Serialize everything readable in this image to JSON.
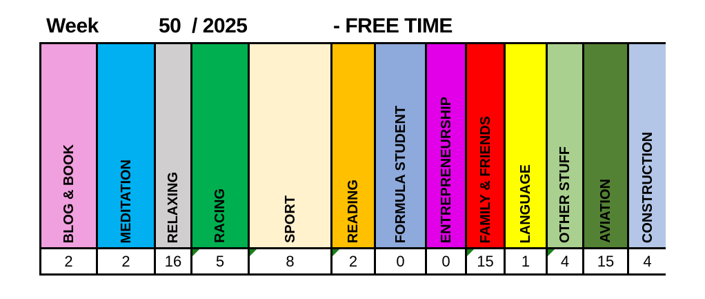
{
  "header": {
    "week_label": "Week",
    "week_year": "50  / 2025",
    "section": "- FREE TIME"
  },
  "categories": [
    {
      "label": "BLOG & BOOK",
      "value": "2",
      "color": "#F0A0DE",
      "comment": false
    },
    {
      "label": "MEDITATION",
      "value": "2",
      "color": "#00B0F0",
      "comment": false
    },
    {
      "label": "RELAXING",
      "value": "16",
      "color": "#D0CECE",
      "comment": false
    },
    {
      "label": "RACING",
      "value": "5",
      "color": "#00B050",
      "comment": true
    },
    {
      "label": "SPORT",
      "value": "8",
      "color": "#FFF2CC",
      "comment": true
    },
    {
      "label": "READING",
      "value": "2",
      "color": "#FFC000",
      "comment": true
    },
    {
      "label": "FORMULA STUDENT",
      "value": "0",
      "color": "#8EA9DB",
      "comment": false
    },
    {
      "label": "ENTREPRENEURSHIP",
      "value": "0",
      "color": "#E100E8",
      "comment": false
    },
    {
      "label": "FAMILY & FRIENDS",
      "value": "15",
      "color": "#FF0000",
      "comment": true
    },
    {
      "label": "LANGUAGE",
      "value": "1",
      "color": "#FFFF00",
      "comment": false
    },
    {
      "label": "OTHER STUFF",
      "value": "4",
      "color": "#A9D08E",
      "comment": true
    },
    {
      "label": "AVIATION",
      "value": "15",
      "color": "#548235",
      "comment": false
    },
    {
      "label": "CONSTRUCTION",
      "value": "4",
      "color": "#B4C6E7",
      "comment": false
    }
  ]
}
